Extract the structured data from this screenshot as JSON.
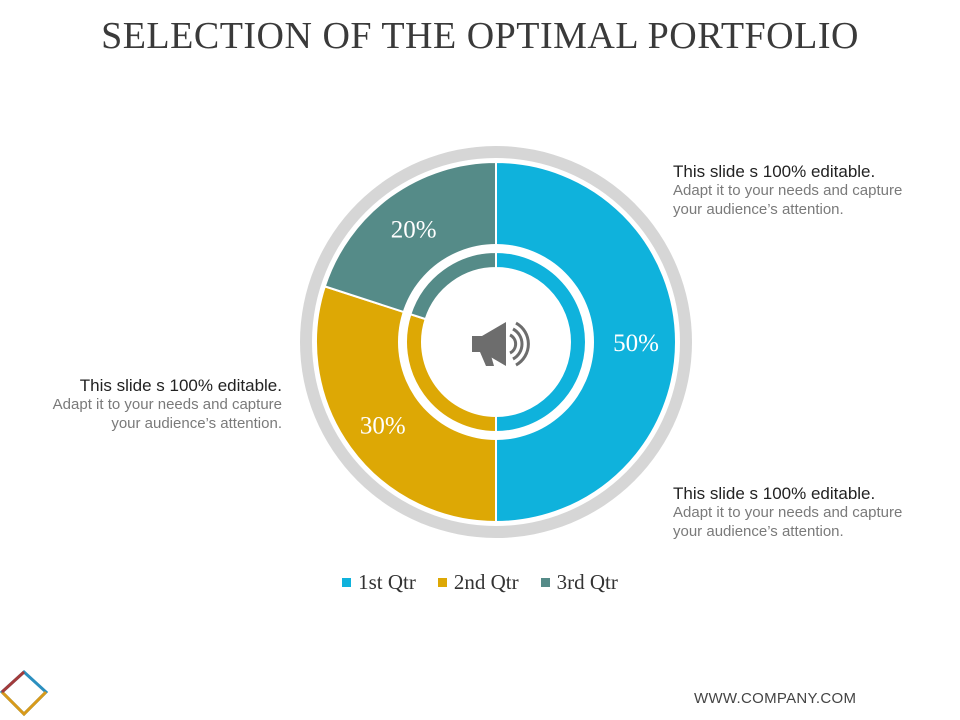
{
  "title": "SELECTION OF THE OPTIMAL PORTFOLIO",
  "chart_data": {
    "type": "pie",
    "categories": [
      "1st Qtr",
      "2nd Qtr",
      "3rd Qtr"
    ],
    "values": [
      50,
      30,
      20
    ],
    "data_labels": [
      "50%",
      "30%",
      "20%"
    ],
    "colors": [
      "#0fb2dc",
      "#dda805",
      "#558b88"
    ],
    "legend_position": "bottom",
    "center_icon": "megaphone-icon"
  },
  "notes": [
    {
      "heading": "This slide s 100% editable.",
      "body": "Adapt it to your needs and capture your audience’s attention."
    },
    {
      "heading": "This slide s 100% editable.",
      "body": "Adapt it to your needs and capture your audience’s attention."
    },
    {
      "heading": "This slide s 100% editable.",
      "body": "Adapt it to your needs and capture your audience’s attention."
    }
  ],
  "footer": "WWW.COMPANY.COM",
  "logo_icon": "diamond-logo-icon"
}
